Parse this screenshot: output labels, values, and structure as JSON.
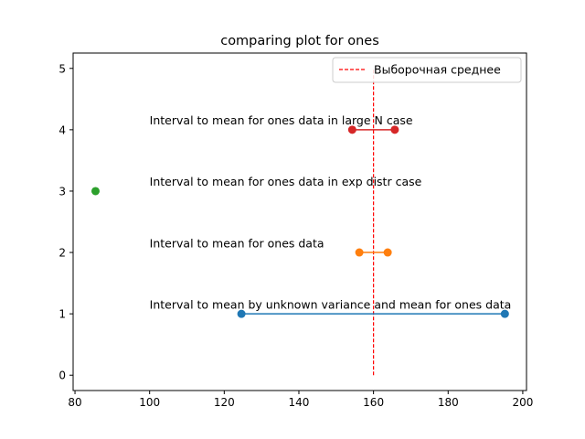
{
  "chart_data": {
    "type": "line",
    "title": "comparing plot for ones",
    "xlabel": "",
    "ylabel": "",
    "xlim": [
      79.5,
      201.0
    ],
    "ylim": [
      -0.25,
      5.25
    ],
    "xticks": [
      80,
      100,
      120,
      140,
      160,
      180,
      200
    ],
    "yticks": [
      0,
      1,
      2,
      3,
      4,
      5
    ],
    "grid": false,
    "legend_position": "top-right",
    "series": [
      {
        "color": "#1f77b4",
        "points": [
          [
            124.6,
            1
          ],
          [
            195.2,
            1
          ]
        ],
        "annotation": "Interval to mean by unknown variance and mean for ones data",
        "annotation_xy": [
          100,
          1.1
        ]
      },
      {
        "color": "#ff7f0e",
        "points": [
          [
            156.2,
            2
          ],
          [
            163.8,
            2
          ]
        ],
        "annotation": "Interval to mean for ones data",
        "annotation_xy": [
          100,
          2.1
        ]
      },
      {
        "color": "#2ca02c",
        "points": [
          [
            85.5,
            3
          ]
        ],
        "annotation": "Interval to mean for ones data in exp distr case",
        "annotation_xy": [
          100,
          3.1
        ]
      },
      {
        "color": "#d62728",
        "points": [
          [
            154.3,
            4
          ],
          [
            165.7,
            4
          ]
        ],
        "annotation": "Interval to mean for ones data in large N case",
        "annotation_xy": [
          100,
          4.1
        ]
      }
    ],
    "reference_line": {
      "name": "Выборочная среднее",
      "x": 160,
      "y_range": [
        0,
        5
      ],
      "color": "#ff0000",
      "style": "dashed"
    }
  }
}
